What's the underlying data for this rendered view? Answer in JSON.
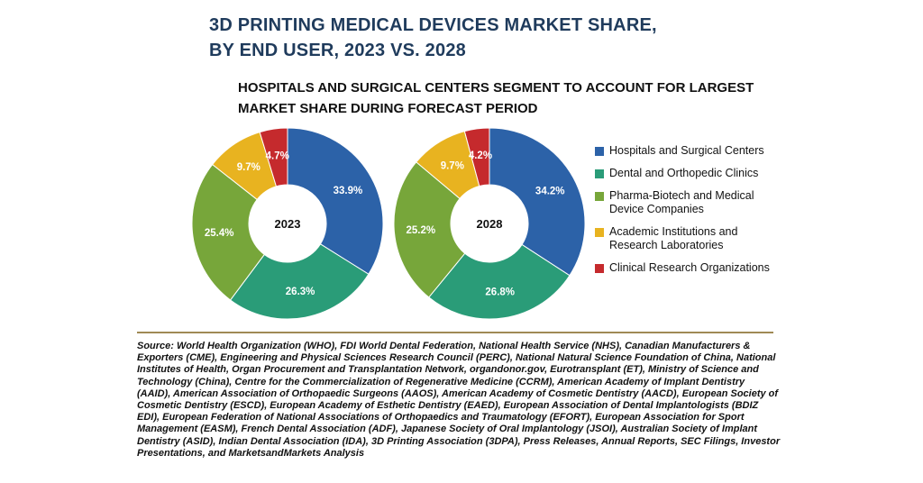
{
  "title_line1": "3D PRINTING MEDICAL DEVICES MARKET SHARE,",
  "title_line2": "BY END USER, 2023 VS. 2028",
  "subtitle_line1": "HOSPITALS AND SURGICAL CENTERS SEGMENT TO ACCOUNT FOR LARGEST",
  "subtitle_line2": "MARKET SHARE DURING FORECAST PERIOD",
  "source": "Source: World Health Organization (WHO), FDI World Dental Federation, National Health Service (NHS), Canadian Manufacturers & Exporters (CME), Engineering and Physical Sciences Research Council (PERC), National Natural Science Foundation of China, National Institutes of Health, Organ Procurement and Transplantation Network, organdonor.gov, Eurotransplant (ET), Ministry of Science and Technology (China), Centre for the Commercialization of Regenerative Medicine (CCRM), American Academy of Implant Dentistry (AAID), American Association of Orthopaedic Surgeons (AAOS), American Academy of Cosmetic Dentistry (AACD), European Society of Cosmetic Dentistry (ESCD), European Academy of Esthetic Dentistry (EAED), European Association of Dental Implantologists (BDIZ EDI), European Federation of National Associations of Orthopaedics and Traumatology (EFORT), European Association for Sport Management (EASM), French Dental Association (ADF), Japanese Society of Oral Implantology (JSOI), Australian Society of Implant Dentistry (ASID), Indian Dental Association (IDA), 3D Printing Association (3DPA), Press Releases, Annual Reports, SEC Filings, Investor Presentations, and MarketsandMarkets Analysis",
  "chart_data": {
    "type": "pie",
    "donut": true,
    "categories": [
      "Hospitals and Surgical Centers",
      "Dental and Orthopedic Clinics",
      "Pharma-Biotech and Medical Device Companies",
      "Academic Institutions and Research Laboratories",
      "Clinical Research Organizations"
    ],
    "legend_lines": [
      [
        "Hospitals and Surgical Centers"
      ],
      [
        "Dental and Orthopedic Clinics"
      ],
      [
        "Pharma-Biotech and Medical",
        "Device Companies"
      ],
      [
        "Academic Institutions and",
        "Research Laboratories"
      ],
      [
        "Clinical Research Organizations"
      ]
    ],
    "colors": [
      "#2c62a8",
      "#2a9c78",
      "#77a63a",
      "#e8b320",
      "#c52a2d"
    ],
    "legend_position": "right",
    "series": [
      {
        "name": "2023",
        "values": [
          33.9,
          26.3,
          25.4,
          9.7,
          4.7
        ],
        "labels": [
          "33.9%",
          "26.3%",
          "25.4%",
          "9.7%",
          "4.7%"
        ]
      },
      {
        "name": "2028",
        "values": [
          34.2,
          26.8,
          25.2,
          9.7,
          4.2
        ],
        "labels": [
          "34.2%",
          "26.8%",
          "25.2%",
          "9.7%",
          "4.2%"
        ]
      }
    ]
  }
}
